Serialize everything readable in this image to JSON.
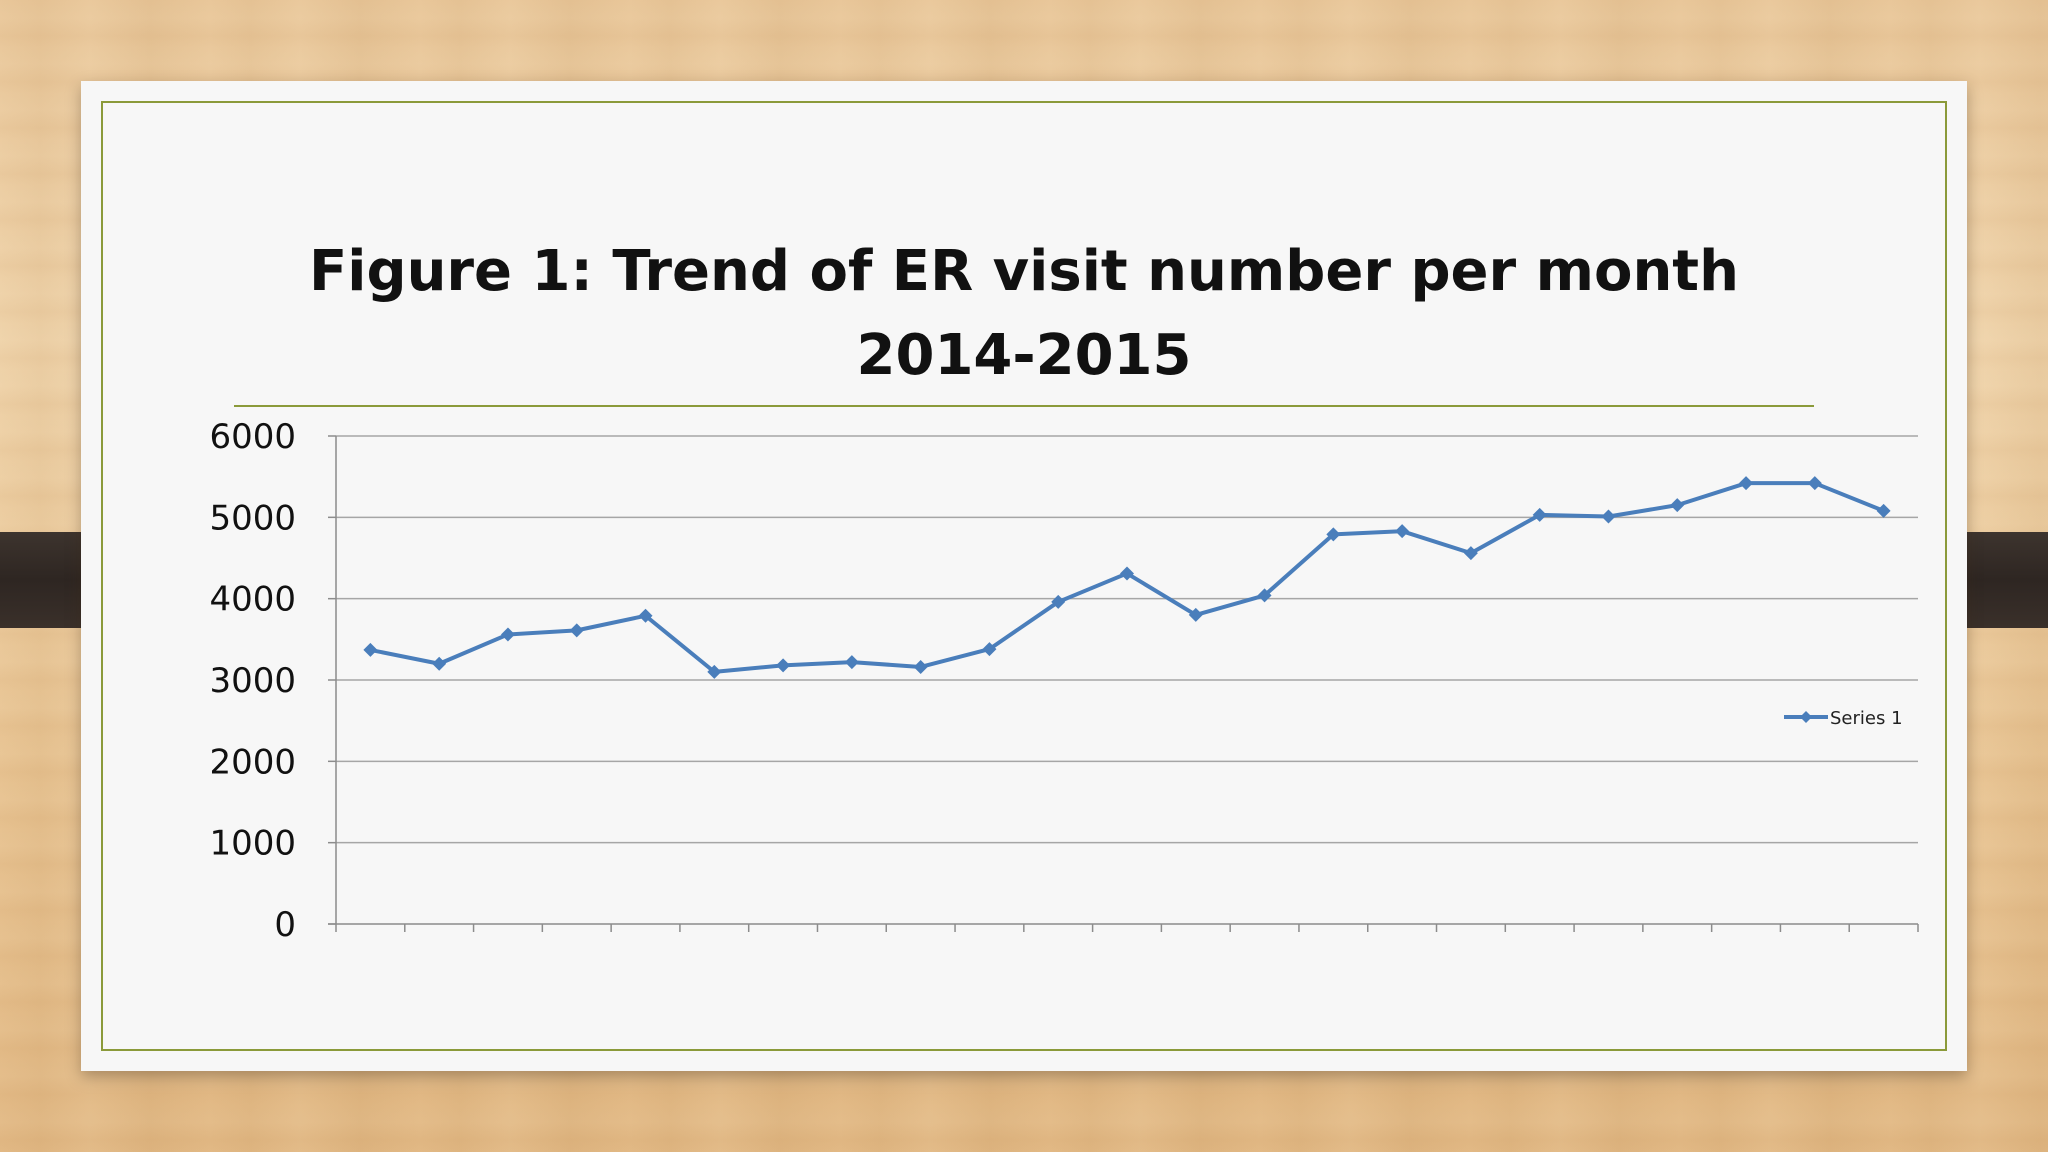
{
  "slide": {
    "title_line1": "Figure 1: Trend of ER visit number per month",
    "title_line2": "2014-2015"
  },
  "colors": {
    "series": "#4a7ebb",
    "border": "#8b9a3a",
    "grid": "#a6a6a6"
  },
  "chart_data": {
    "type": "line",
    "title": "Figure 1: Trend of ER visit number per month 2014-2015",
    "xlabel": "",
    "ylabel": "",
    "ylim": [
      0,
      6000
    ],
    "y_ticks": [
      "0",
      "1000",
      "2000",
      "3000",
      "4000",
      "5000",
      "6000"
    ],
    "grid": true,
    "legend": "right",
    "x": [
      1,
      2,
      3,
      4,
      5,
      6,
      7,
      8,
      9,
      10,
      11,
      12,
      13,
      14,
      15,
      16,
      17,
      18,
      19,
      20,
      21,
      22,
      23
    ],
    "series": [
      {
        "name": "Series 1",
        "values": [
          3370,
          3200,
          3560,
          3610,
          3790,
          3100,
          3180,
          3220,
          3160,
          3380,
          3960,
          4310,
          3800,
          4040,
          4790,
          4830,
          4560,
          5030,
          5010,
          5150,
          5420,
          5420,
          5080
        ]
      }
    ]
  }
}
